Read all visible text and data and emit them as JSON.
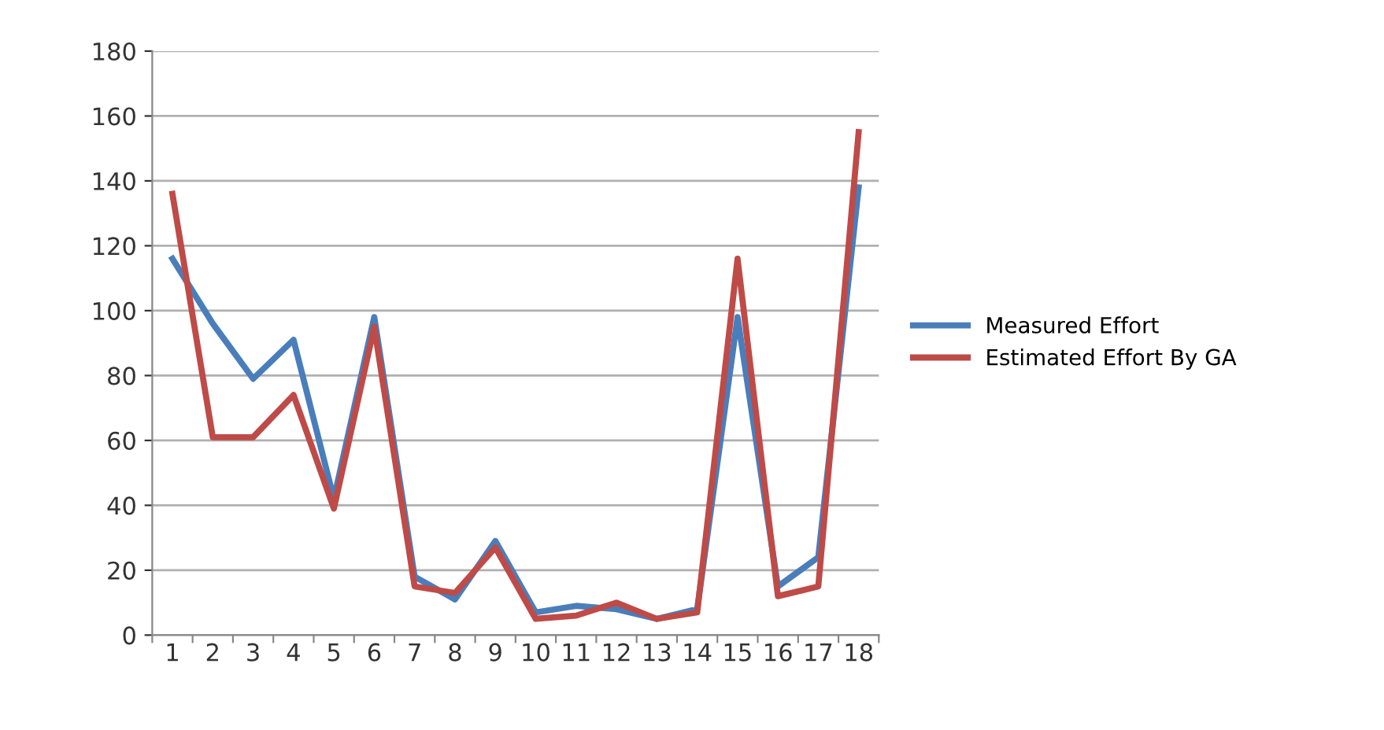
{
  "chart_data": {
    "type": "line",
    "categories": [
      "1",
      "2",
      "3",
      "4",
      "5",
      "6",
      "7",
      "8",
      "9",
      "10",
      "11",
      "12",
      "13",
      "14",
      "15",
      "16",
      "17",
      "18"
    ],
    "series": [
      {
        "name": "Measured Effort",
        "color": "#4a7ebb",
        "values": [
          116,
          96,
          79,
          91,
          42,
          98,
          18,
          11,
          29,
          7,
          9,
          8,
          5,
          8,
          98,
          15,
          24,
          138
        ]
      },
      {
        "name": "Estimated Effort By GA",
        "color": "#be4b48",
        "values": [
          136,
          61,
          61,
          74,
          39,
          95,
          15,
          13,
          27,
          5,
          6,
          10,
          5,
          7,
          116,
          12,
          15,
          155
        ]
      }
    ],
    "ylim": [
      0,
      180
    ],
    "yticks": [
      0,
      20,
      40,
      60,
      80,
      100,
      120,
      140,
      160,
      180
    ],
    "grid": "y",
    "legend": "right",
    "marker": "none",
    "line_style": "solid"
  }
}
